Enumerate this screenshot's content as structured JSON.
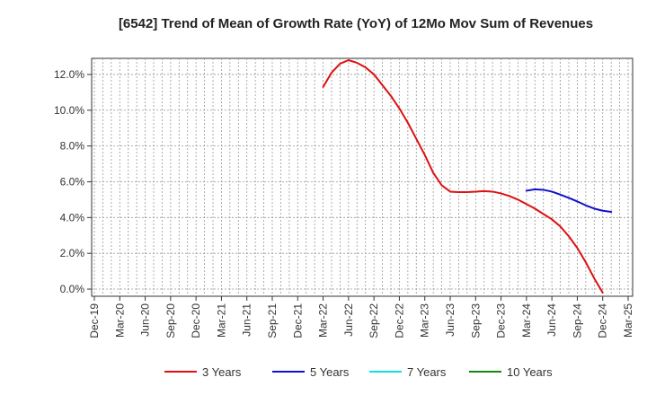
{
  "chart_data": {
    "type": "line",
    "title": "[6542]  Trend of Mean of Growth Rate (YoY) of 12Mo Mov Sum of Revenues",
    "xlabel": "",
    "ylabel": "",
    "x_ticks": [
      "Dec-19",
      "Mar-20",
      "Jun-20",
      "Sep-20",
      "Dec-20",
      "Mar-21",
      "Jun-21",
      "Sep-21",
      "Dec-21",
      "Mar-22",
      "Jun-22",
      "Sep-22",
      "Dec-22",
      "Mar-23",
      "Jun-23",
      "Sep-23",
      "Dec-23",
      "Mar-24",
      "Jun-24",
      "Sep-24",
      "Dec-24",
      "Mar-25"
    ],
    "y_ticks": [
      0.0,
      2.0,
      4.0,
      6.0,
      8.0,
      10.0,
      12.0
    ],
    "y_tick_labels": [
      "0.0%",
      "2.0%",
      "4.0%",
      "6.0%",
      "8.0%",
      "10.0%",
      "12.0%"
    ],
    "ylim": [
      -0.4,
      12.9
    ],
    "x_months_start": "Dec-19",
    "grid": true,
    "legend_position": "bottom",
    "series": [
      {
        "name": "3 Years",
        "color": "#dd1111",
        "start_month": 27,
        "values": [
          11.3,
          12.1,
          12.6,
          12.8,
          12.65,
          12.4,
          12.0,
          11.4,
          10.8,
          10.1,
          9.3,
          8.4,
          7.5,
          6.5,
          5.8,
          5.45,
          5.42,
          5.42,
          5.45,
          5.48,
          5.45,
          5.35,
          5.2,
          5.0,
          4.75,
          4.5,
          4.2,
          3.9,
          3.5,
          2.95,
          2.3,
          1.5,
          0.6,
          -0.2
        ]
      },
      {
        "name": "5 Years",
        "color": "#1111cc",
        "start_month": 51,
        "values": [
          5.5,
          5.58,
          5.55,
          5.45,
          5.28,
          5.1,
          4.9,
          4.68,
          4.5,
          4.38,
          4.32
        ]
      },
      {
        "name": "7 Years",
        "color": "#11dddd",
        "start_month": 0,
        "values": []
      },
      {
        "name": "10 Years",
        "color": "#118811",
        "start_month": 0,
        "values": []
      }
    ]
  }
}
